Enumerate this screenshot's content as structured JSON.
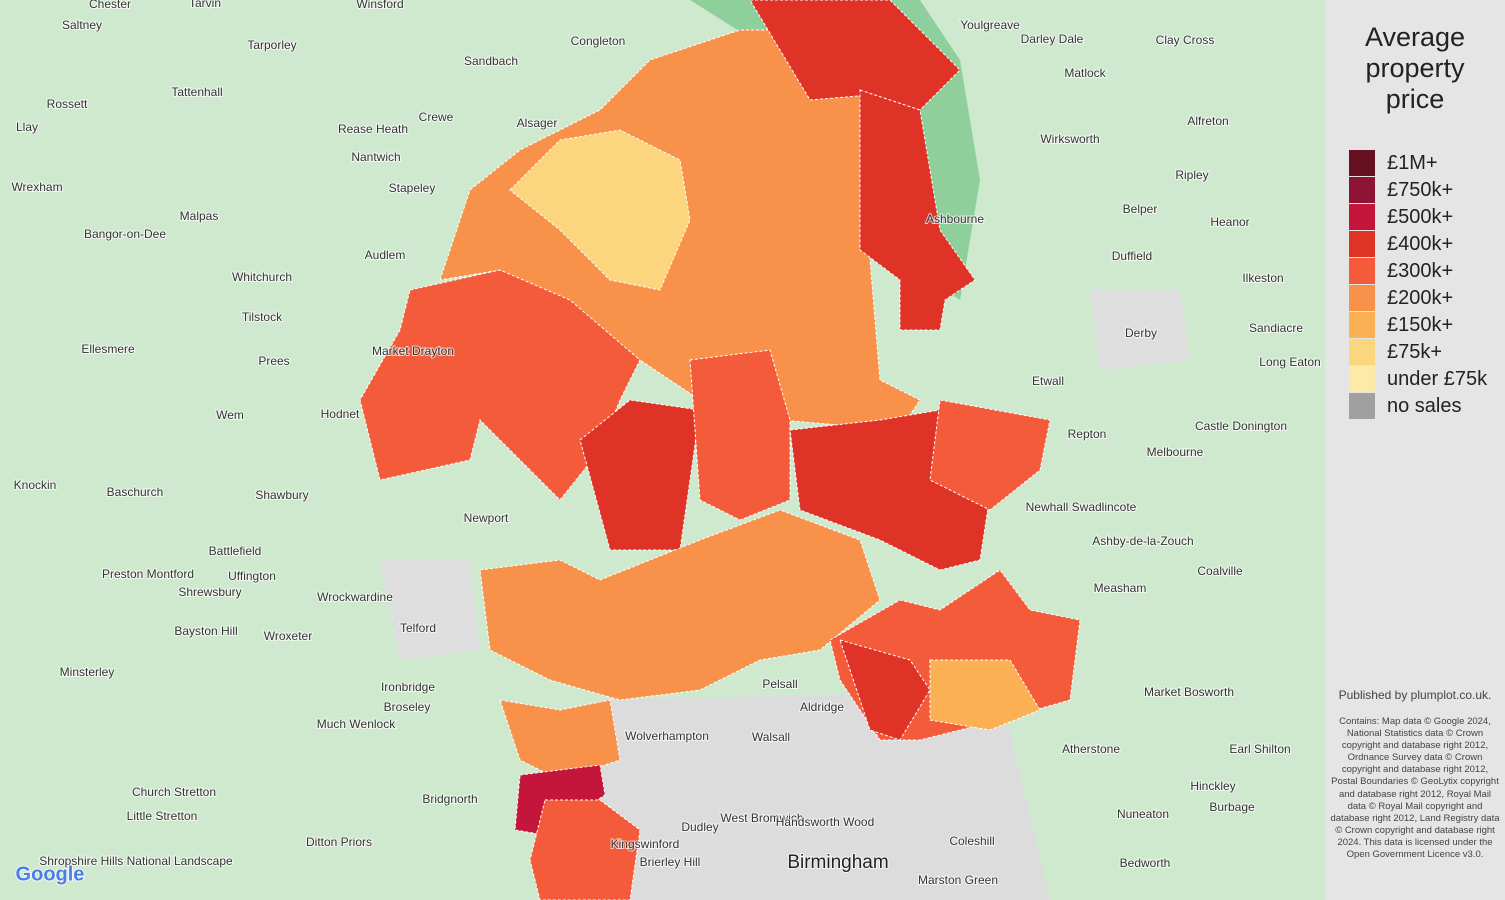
{
  "legend": {
    "title": "Average property price",
    "items": [
      {
        "label": "£1M+",
        "color": "#67101f"
      },
      {
        "label": "£750k+",
        "color": "#8e1433"
      },
      {
        "label": "£500k+",
        "color": "#c4163a"
      },
      {
        "label": "£400k+",
        "color": "#e03328"
      },
      {
        "label": "£300k+",
        "color": "#f45b3a"
      },
      {
        "label": "£200k+",
        "color": "#f8914a"
      },
      {
        "label": "£150k+",
        "color": "#fbb153"
      },
      {
        "label": "£75k+",
        "color": "#fcd67f"
      },
      {
        "label": "under £75k",
        "color": "#fde9a8"
      },
      {
        "label": "no sales",
        "color": "#a0a0a0"
      }
    ]
  },
  "published": "Published by plumplot.co.uk.",
  "contains": "Contains: Map data © Google 2024, National Statistics data © Crown copyright and database right 2012, Ordnance Survey data © Crown copyright and database right 2012, Postal Boundaries © GeoLytix copyright and database right 2012, Royal Mail data © Royal Mail copyright and database right 2012, Land Registry data © Crown copyright and database right 2024. This data is licensed under the Open Government Licence v3.0.",
  "places": [
    "Chester",
    "Saltney",
    "Tarvin",
    "Winsford",
    "Congleton",
    "Sandbach",
    "Tarporley",
    "Youlgreave",
    "Darley Dale",
    "Clay Cross",
    "Matlock",
    "Rossett",
    "Tattenhall",
    "Alsager",
    "Crewe",
    "Rease Heath",
    "Nantwich",
    "Wirksworth",
    "Alfreton",
    "Llay",
    "Wrexham",
    "Stapeley",
    "Malpas",
    "Bangor-on-Dee",
    "Ashbourne",
    "Belper",
    "Ripley",
    "Heanor",
    "Audlem",
    "Whitchurch",
    "Duffield",
    "Ilkeston",
    "Tilstock",
    "Derby",
    "Sandiacre",
    "Ellesmere",
    "Prees",
    "Market Drayton",
    "Etwall",
    "Long Eaton",
    "Wem",
    "Hodnet",
    "Repton",
    "Castle Donington",
    "Melbourne",
    "Knockin",
    "Baschurch",
    "Shawbury",
    "Newhall Swadlincote",
    "Newport",
    "Ashby-de-la-Zouch",
    "Battlefield",
    "Preston Montford",
    "Uffington",
    "Coalville",
    "Measham",
    "Shrewsbury",
    "Wrockwardine",
    "Telford",
    "Bayston Hill",
    "Wroxeter",
    "Market Bosworth",
    "Minsterley",
    "Ironbridge",
    "Broseley",
    "Much Wenlock",
    "Pelsall",
    "Aldridge",
    "Wolverhampton",
    "Walsall",
    "Atherstone",
    "Earl Shilton",
    "Church Stretton",
    "Bridgnorth",
    "Dudley",
    "West Bromwich",
    "Handsworth Wood",
    "Hinckley",
    "Burbage",
    "Nuneaton",
    "Little Stretton",
    "Ditton Priors",
    "Coleshill",
    "Birmingham",
    "Brierley Hill",
    "Bedworth",
    "Marston Green",
    "Kingswinford",
    "Shropshire Hills National Landscape",
    "Google"
  ]
}
